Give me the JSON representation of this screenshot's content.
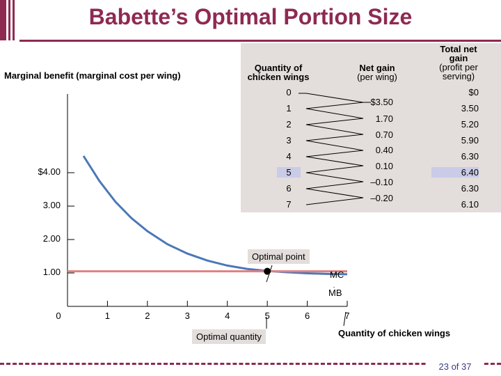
{
  "title": "Babette’s Optimal Portion Size",
  "ylabel": "Marginal benefit (marginal cost per wing)",
  "xlabel": "Quantity of chicken wings",
  "table": {
    "headers": {
      "quantity": "Quantity of chicken wings",
      "net_gain_title": "Net gain",
      "net_gain_sub": "(per wing)",
      "total_title": "Total net gain",
      "total_sub": "(profit per serving)"
    },
    "rows": [
      {
        "q": "0",
        "total": "$0"
      },
      {
        "q": "1",
        "total": "3.50"
      },
      {
        "q": "2",
        "total": "5.20"
      },
      {
        "q": "3",
        "total": "5.90"
      },
      {
        "q": "4",
        "total": "6.30"
      },
      {
        "q": "5",
        "total": "6.40",
        "highlight": true
      },
      {
        "q": "6",
        "total": "6.30"
      },
      {
        "q": "7",
        "total": "6.10"
      }
    ],
    "net_gains": [
      "$3.50",
      "1.70",
      "0.70",
      "0.40",
      "0.10",
      "–0.10",
      "–0.20"
    ]
  },
  "annotations": {
    "optimal_point": "Optimal point",
    "optimal_quantity": "Optimal quantity",
    "mc": "MC",
    "mb": "MB"
  },
  "page": "23 of 37",
  "colors": {
    "brand": "#8e2a52",
    "mb_curve": "#4a78b8",
    "mc_line": "#e08080",
    "table_bg": "#e3dedb",
    "highlight": "#c9cbe7"
  },
  "chart_data": {
    "type": "line",
    "xlabel": "Quantity of chicken wings",
    "ylabel": "Marginal benefit (marginal cost per wing)",
    "x_ticks": [
      "0",
      "1",
      "2",
      "3",
      "4",
      "5",
      "6",
      "7"
    ],
    "y_ticks": [
      {
        "value": 1,
        "label": "1.00"
      },
      {
        "value": 2,
        "label": "2.00"
      },
      {
        "value": 3,
        "label": "3.00"
      },
      {
        "value": 4,
        "label": "$4.00"
      }
    ],
    "xlim": [
      0,
      7
    ],
    "ylim": [
      0,
      4.5
    ],
    "series": [
      {
        "name": "MB",
        "x": [
          0.4,
          0.8,
          1.2,
          1.6,
          2.0,
          2.5,
          3.0,
          3.5,
          4.0,
          4.5,
          5.0,
          5.5,
          6.0,
          6.5,
          7.0
        ],
        "y": [
          4.5,
          3.75,
          3.13,
          2.64,
          2.25,
          1.86,
          1.58,
          1.37,
          1.22,
          1.12,
          1.06,
          1.02,
          0.99,
          0.97,
          0.96
        ]
      },
      {
        "name": "MC",
        "x": [
          0,
          7
        ],
        "y": [
          1.05,
          1.05
        ]
      }
    ],
    "optimal": {
      "x": 5,
      "y": 1.05
    }
  }
}
